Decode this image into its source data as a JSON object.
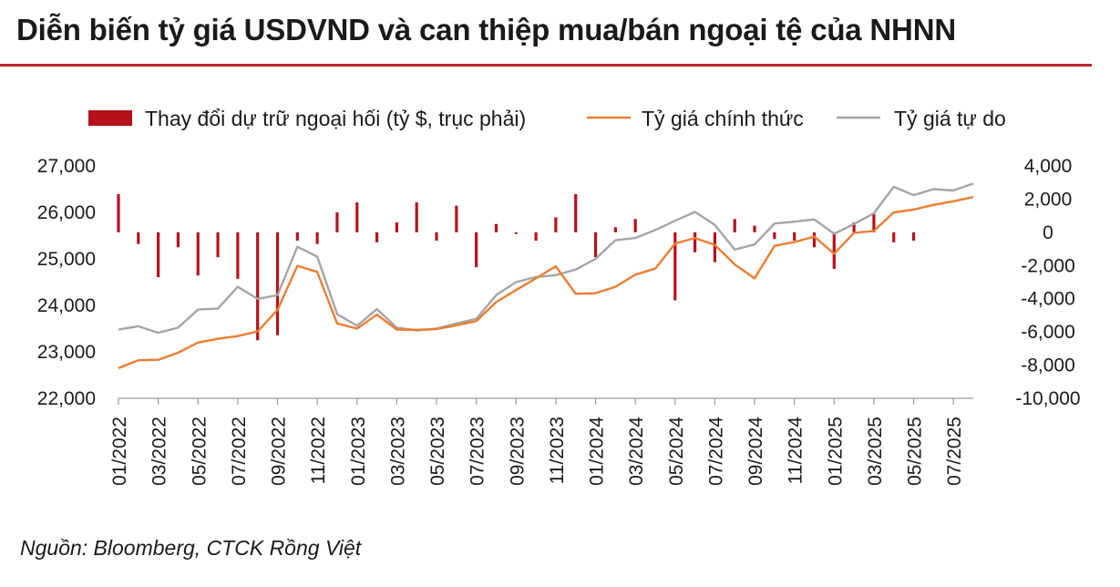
{
  "title": "Diễn biến tỷ giá USDVND và can thiệp mua/bán ngoại tệ của NHNN",
  "source": "Nguồn: Bloomberg, CTCK Rồng Việt",
  "colors": {
    "title_rule": "#c0222a",
    "bars": "#b5121b",
    "official": "#ed7d31",
    "free": "#a5a5a5",
    "axis": "#9a9a9a"
  },
  "chart_data": {
    "type": "bar+line",
    "legend": [
      {
        "key": "bars",
        "label": "Thay đổi dự trữ ngoại hối (tỷ $, trục phải)"
      },
      {
        "key": "official",
        "label": "Tỷ giá chính thức"
      },
      {
        "key": "free",
        "label": "Tỷ giá tự do"
      }
    ],
    "y_left": {
      "min": 22000,
      "max": 27000,
      "ticks": [
        22000,
        23000,
        24000,
        25000,
        26000,
        27000
      ],
      "tick_labels": [
        "22,000",
        "23,000",
        "24,000",
        "25,000",
        "26,000",
        "27,000"
      ]
    },
    "y_right": {
      "min": -10000,
      "max": 4000,
      "ticks": [
        -10000,
        -8000,
        -6000,
        -4000,
        -2000,
        0,
        2000,
        4000
      ],
      "tick_labels": [
        "-10,000",
        "-8,000",
        "-6,000",
        "-4,000",
        "-2,000",
        "0",
        "2,000",
        "4,000"
      ]
    },
    "x_tick_labels": [
      "01/2022",
      "03/2022",
      "05/2022",
      "07/2022",
      "09/2022",
      "11/2022",
      "01/2023",
      "03/2023",
      "05/2023",
      "07/2023",
      "09/2023",
      "11/2023",
      "01/2024",
      "03/2024",
      "05/2024",
      "07/2024",
      "09/2024",
      "11/2024",
      "01/2025",
      "03/2025",
      "05/2025",
      "07/2025"
    ],
    "months": [
      "01/2022",
      "02/2022",
      "03/2022",
      "04/2022",
      "05/2022",
      "06/2022",
      "07/2022",
      "08/2022",
      "09/2022",
      "10/2022",
      "11/2022",
      "12/2022",
      "01/2023",
      "02/2023",
      "03/2023",
      "04/2023",
      "05/2023",
      "06/2023",
      "07/2023",
      "08/2023",
      "09/2023",
      "10/2023",
      "11/2023",
      "12/2023",
      "01/2024",
      "02/2024",
      "03/2024",
      "04/2024",
      "05/2024",
      "06/2024",
      "07/2024",
      "08/2024",
      "09/2024",
      "10/2024",
      "11/2024",
      "12/2024",
      "01/2025",
      "02/2025",
      "03/2025",
      "04/2025",
      "05/2025",
      "06/2025",
      "07/2025",
      "08/2025"
    ],
    "series": [
      {
        "name": "Thay đổi dự trữ ngoại hối (tỷ $, trục phải)",
        "axis": "right",
        "kind": "bar",
        "values": [
          2300,
          -700,
          -2700,
          -900,
          -2600,
          -1500,
          -2800,
          -6500,
          -6200,
          -500,
          -700,
          1200,
          1800,
          -600,
          600,
          1800,
          -500,
          1600,
          -2100,
          500,
          -100,
          -500,
          900,
          2300,
          -1500,
          300,
          800,
          0,
          -4100,
          -1200,
          -1800,
          800,
          400,
          -400,
          -500,
          -900,
          -2200,
          600,
          1100,
          -600,
          -500,
          0,
          0,
          0
        ]
      },
      {
        "name": "Tỷ giá chính thức",
        "axis": "left",
        "kind": "line",
        "values": [
          22650,
          22820,
          22830,
          22980,
          23200,
          23280,
          23340,
          23440,
          23900,
          24850,
          24720,
          23610,
          23500,
          23800,
          23480,
          23470,
          23490,
          23570,
          23660,
          24070,
          24330,
          24580,
          24840,
          24250,
          24260,
          24400,
          24660,
          24790,
          25330,
          25450,
          25300,
          24880,
          24580,
          25280,
          25360,
          25480,
          25110,
          25560,
          25600,
          26000,
          26060,
          26160,
          26240,
          26330
        ]
      },
      {
        "name": "Tỷ giá tự do",
        "axis": "left",
        "kind": "line",
        "values": [
          23480,
          23550,
          23410,
          23520,
          23910,
          23930,
          24400,
          24140,
          24220,
          25260,
          25050,
          23810,
          23560,
          23920,
          23520,
          23460,
          23500,
          23610,
          23710,
          24220,
          24500,
          24610,
          24650,
          24770,
          25000,
          25400,
          25450,
          25620,
          25820,
          26010,
          25730,
          25200,
          25310,
          25760,
          25800,
          25850,
          25540,
          25750,
          25980,
          26550,
          26370,
          26500,
          26470,
          26620
        ]
      }
    ]
  }
}
